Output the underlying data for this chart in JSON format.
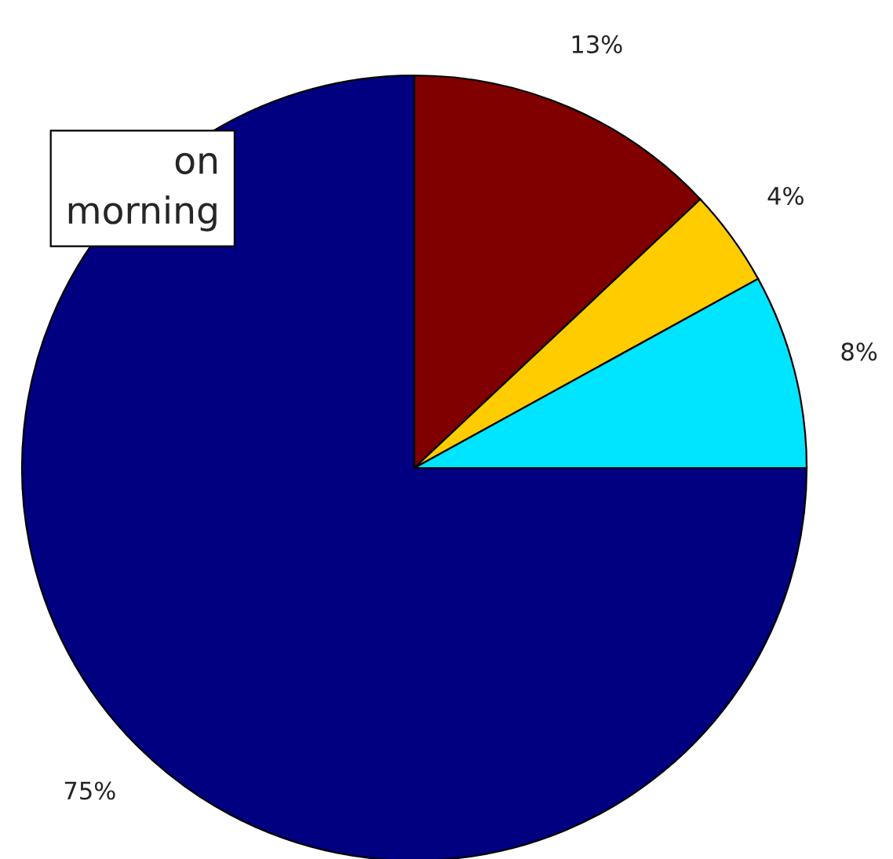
{
  "chart_data": {
    "type": "pie",
    "categories": [
      null,
      null,
      null,
      null
    ],
    "values": [
      13,
      4,
      8,
      75
    ],
    "colors": [
      "#800000",
      "#ffcc00",
      "#00e5ff",
      "#000080"
    ],
    "value_labels": [
      "13%",
      "4%",
      "8%",
      "75%"
    ],
    "annotations": [
      "on",
      "morning"
    ]
  }
}
